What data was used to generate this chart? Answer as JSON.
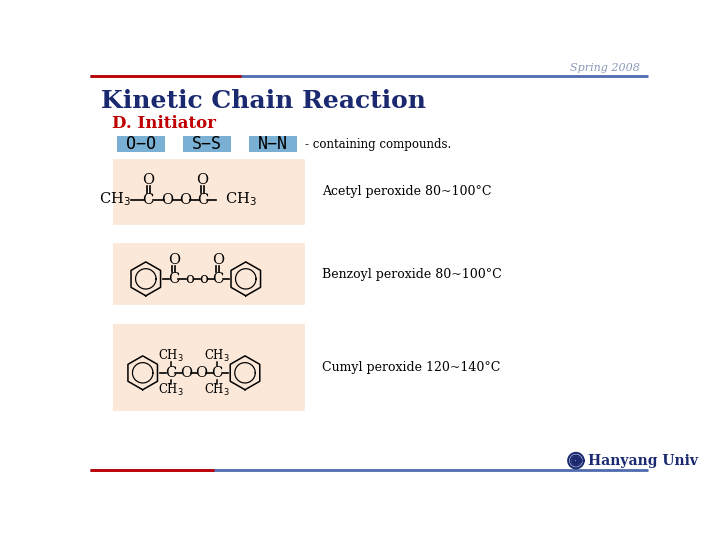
{
  "bg_color": "#ffffff",
  "header_line_color_blue": "#4f6baf",
  "header_line_color_red": "#c00000",
  "spring_text": "Spring 2008",
  "spring_color": "#8896b8",
  "title": "Kinetic Chain Reaction",
  "title_color": "#1a2970",
  "subtitle": "D. Initiator",
  "subtitle_color": "#c00000",
  "badge_bg": "#7ab0d4",
  "badge_labels": [
    "O−O",
    "S−S",
    "N−N"
  ],
  "containing_text": "- containing compounds.",
  "compound_bg": "#fce8d8",
  "compound_labels": [
    "Acetyl peroxide 80~100°C",
    "Benzoyl peroxide 80~100°C",
    "Cumyl peroxide 120~140°C"
  ],
  "hanyang_text": "Hanyang Univ",
  "hanyang_color": "#1a2970",
  "line_color": "#4f6baf"
}
